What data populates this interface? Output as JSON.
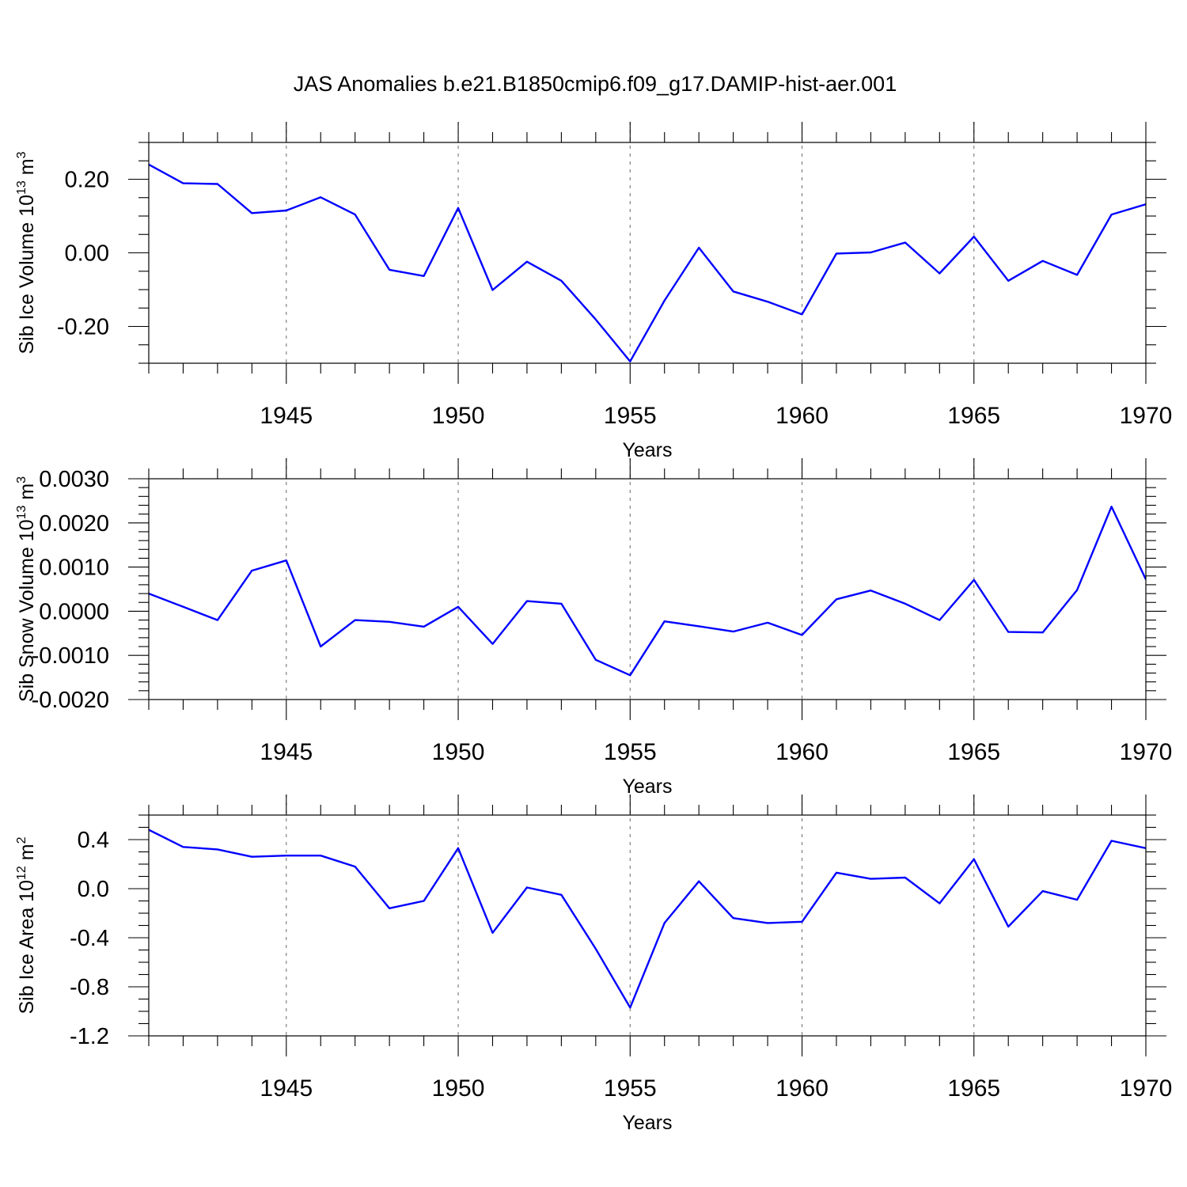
{
  "title": "JAS Anomalies b.e21.B1850cmip6.f09_g17.DAMIP-hist-aer.001",
  "colors": {
    "line": "#0000ff",
    "grid": "#777777",
    "axis": "#000000"
  },
  "chart_data": [
    {
      "type": "line",
      "ylabel": "Sib Ice Volume 10",
      "ylabel_sup": "13",
      "ylabel_unit": " m",
      "ylabel_unit_sup": "3",
      "xlabel": "Years",
      "xlim": [
        1941,
        1970
      ],
      "ylim": [
        -0.3,
        0.3
      ],
      "yticks": [
        -0.2,
        0.0,
        0.2
      ],
      "ytick_labels": [
        "-0.20",
        "0.00",
        "0.20"
      ],
      "yminor_step": 0.05,
      "xticks": [
        1945,
        1950,
        1955,
        1960,
        1965,
        1970
      ],
      "xtick_labels": [
        "1945",
        "1950",
        "1955",
        "1960",
        "1965",
        "1970"
      ],
      "grid_x": [
        1945,
        1950,
        1955,
        1960,
        1965
      ],
      "x": [
        1941,
        1942,
        1943,
        1944,
        1945,
        1946,
        1947,
        1948,
        1949,
        1950,
        1951,
        1952,
        1953,
        1954,
        1955,
        1956,
        1957,
        1958,
        1959,
        1960,
        1961,
        1962,
        1963,
        1964,
        1965,
        1966,
        1967,
        1968,
        1969,
        1970
      ],
      "values": [
        0.24,
        0.189,
        0.187,
        0.108,
        0.115,
        0.151,
        0.104,
        -0.046,
        -0.063,
        0.122,
        -0.101,
        -0.024,
        -0.076,
        -0.181,
        -0.295,
        -0.13,
        0.014,
        -0.105,
        -0.133,
        -0.167,
        -0.002,
        0.001,
        0.028,
        -0.056,
        0.044,
        -0.076,
        -0.022,
        -0.06,
        0.104,
        0.132
      ]
    },
    {
      "type": "line",
      "ylabel": "Sib Snow Volume 10",
      "ylabel_sup": "13",
      "ylabel_unit": " m",
      "ylabel_unit_sup": "3",
      "xlabel": "Years",
      "xlim": [
        1941,
        1970
      ],
      "ylim": [
        -0.002,
        0.003
      ],
      "yticks": [
        -0.002,
        -0.001,
        0.0,
        0.001,
        0.002,
        0.003
      ],
      "ytick_labels": [
        "-0.0020",
        "-0.0010",
        "0.0000",
        "0.0010",
        "0.0020",
        "0.0030"
      ],
      "yminor_step": 0.0002,
      "xticks": [
        1945,
        1950,
        1955,
        1960,
        1965,
        1970
      ],
      "xtick_labels": [
        "1945",
        "1950",
        "1955",
        "1960",
        "1965",
        "1970"
      ],
      "grid_x": [
        1945,
        1950,
        1955,
        1960,
        1965
      ],
      "x": [
        1941,
        1942,
        1943,
        1944,
        1945,
        1946,
        1947,
        1948,
        1949,
        1950,
        1951,
        1952,
        1953,
        1954,
        1955,
        1956,
        1957,
        1958,
        1959,
        1960,
        1961,
        1962,
        1963,
        1964,
        1965,
        1966,
        1967,
        1968,
        1969,
        1970
      ],
      "values": [
        0.0004,
        0.0001,
        -0.0002,
        0.00092,
        0.00115,
        -0.0008,
        -0.0002,
        -0.00024,
        -0.00035,
        0.0001,
        -0.00074,
        0.00023,
        0.00017,
        -0.0011,
        -0.00145,
        -0.00023,
        -0.00034,
        -0.00046,
        -0.00026,
        -0.00054,
        0.00027,
        0.00047,
        0.00017,
        -0.0002,
        0.00071,
        -0.00047,
        -0.00048,
        0.00048,
        0.00237,
        0.00072
      ]
    },
    {
      "type": "line",
      "ylabel": "Sib Ice Area 10",
      "ylabel_sup": "12",
      "ylabel_unit": " m",
      "ylabel_unit_sup": "2",
      "xlabel": "Years",
      "xlim": [
        1941,
        1970
      ],
      "ylim": [
        -1.2,
        0.6
      ],
      "yticks": [
        -1.2,
        -0.8,
        -0.4,
        0.0,
        0.4
      ],
      "ytick_labels": [
        "-1.2",
        "-0.8",
        "-0.4",
        "0.0",
        "0.4"
      ],
      "yminor_step": 0.1,
      "xticks": [
        1945,
        1950,
        1955,
        1960,
        1965,
        1970
      ],
      "xtick_labels": [
        "1945",
        "1950",
        "1955",
        "1960",
        "1965",
        "1970"
      ],
      "grid_x": [
        1945,
        1950,
        1955,
        1960,
        1965
      ],
      "x": [
        1941,
        1942,
        1943,
        1944,
        1945,
        1946,
        1947,
        1948,
        1949,
        1950,
        1951,
        1952,
        1953,
        1954,
        1955,
        1956,
        1957,
        1958,
        1959,
        1960,
        1961,
        1962,
        1963,
        1964,
        1965,
        1966,
        1967,
        1968,
        1969,
        1970
      ],
      "values": [
        0.48,
        0.34,
        0.32,
        0.26,
        0.27,
        0.27,
        0.18,
        -0.16,
        -0.1,
        0.33,
        -0.36,
        0.01,
        -0.05,
        -0.49,
        -0.97,
        -0.28,
        0.06,
        -0.24,
        -0.28,
        -0.27,
        0.13,
        0.08,
        0.09,
        -0.12,
        0.24,
        -0.31,
        -0.02,
        -0.09,
        0.39,
        0.33
      ]
    }
  ]
}
